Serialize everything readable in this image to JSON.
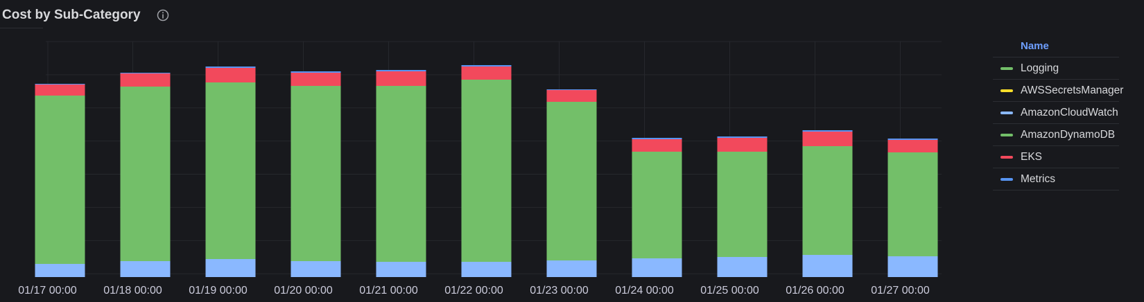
{
  "panel": {
    "title": "Cost by Sub-Category",
    "info_icon": "info-circle-icon"
  },
  "legend": {
    "header": "Name",
    "items": [
      {
        "label": "Logging",
        "color": "#73bf69"
      },
      {
        "label": "AWSSecretsManager",
        "color": "#fade2a"
      },
      {
        "label": "AmazonCloudWatch",
        "color": "#8ab8ff"
      },
      {
        "label": "AmazonDynamoDB",
        "color": "#73bf69"
      },
      {
        "label": "EKS",
        "color": "#f2495c"
      },
      {
        "label": "Metrics",
        "color": "#5794f2"
      }
    ]
  },
  "chart_data": {
    "type": "bar",
    "stacked": true,
    "categories": [
      "01/17 00:00",
      "01/18 00:00",
      "01/19 00:00",
      "01/20 00:00",
      "01/21 00:00",
      "01/22 00:00",
      "01/23 00:00",
      "01/24 00:00",
      "01/25 00:00",
      "01/26 00:00",
      "01/27 00:00"
    ],
    "series": [
      {
        "name": "AmazonCloudWatch",
        "color": "#8ab8ff",
        "values": [
          19,
          23,
          26,
          23,
          22,
          22,
          24,
          27,
          29,
          32,
          30
        ]
      },
      {
        "name": "AmazonDynamoDB",
        "color": "#73bf69",
        "values": [
          243,
          252,
          255,
          253,
          254,
          263,
          229,
          154,
          152,
          157,
          150
        ]
      },
      {
        "name": "EKS",
        "color": "#f2495c",
        "values": [
          16,
          19,
          21,
          19,
          21,
          19,
          17,
          18,
          20,
          21,
          18
        ]
      },
      {
        "name": "Metrics",
        "color": "#5794f2",
        "values": [
          1,
          1,
          2,
          2,
          2,
          2,
          1,
          2,
          2,
          2,
          2
        ]
      }
    ],
    "ylim": [
      0,
      340
    ],
    "grid": true,
    "legend_position": "right"
  }
}
